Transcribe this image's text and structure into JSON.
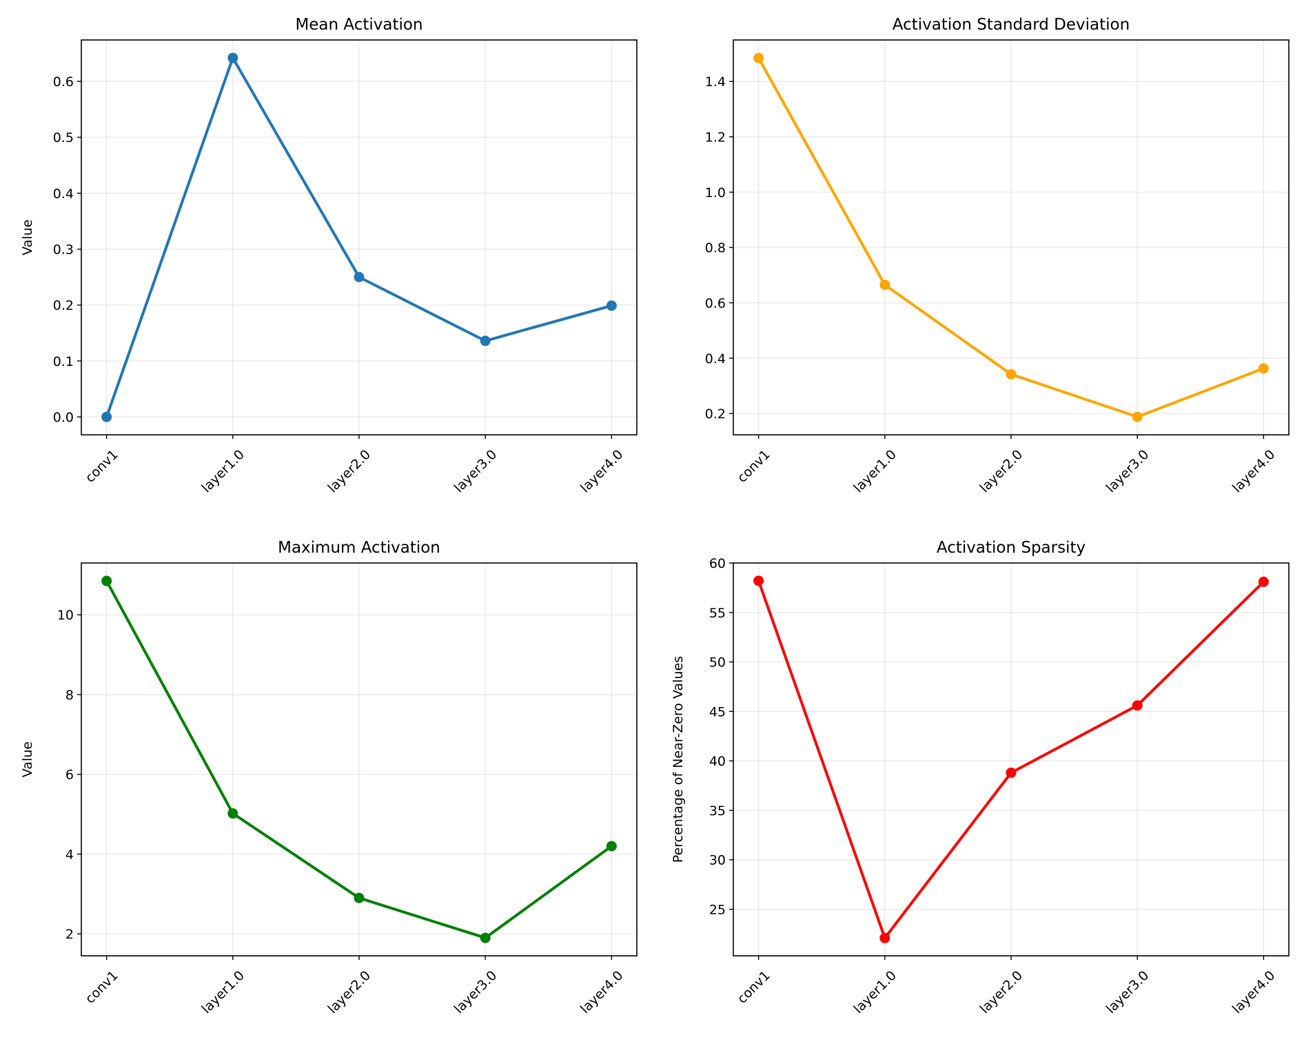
{
  "chart_data": [
    {
      "type": "line",
      "title": "Mean Activation",
      "xlabel": "",
      "ylabel": "Value",
      "categories": [
        "conv1",
        "layer1.0",
        "layer2.0",
        "layer3.0",
        "layer4.0"
      ],
      "values": [
        0.0,
        0.642,
        0.25,
        0.136,
        0.199
      ],
      "color": "#1f77b4",
      "ylim": [
        -0.032,
        0.674
      ],
      "yticks": [
        0.0,
        0.1,
        0.2,
        0.3,
        0.4,
        0.5,
        0.6
      ],
      "ytick_labels": [
        "0.0",
        "0.1",
        "0.2",
        "0.3",
        "0.4",
        "0.5",
        "0.6"
      ],
      "grid": true
    },
    {
      "type": "line",
      "title": "Activation Standard Deviation",
      "xlabel": "",
      "ylabel": "",
      "categories": [
        "conv1",
        "layer1.0",
        "layer2.0",
        "layer3.0",
        "layer4.0"
      ],
      "values": [
        1.485,
        0.665,
        0.342,
        0.188,
        0.363
      ],
      "color": "#ffa500",
      "ylim": [
        0.123,
        1.55
      ],
      "yticks": [
        0.2,
        0.4,
        0.6,
        0.8,
        1.0,
        1.2,
        1.4
      ],
      "ytick_labels": [
        "0.2",
        "0.4",
        "0.6",
        "0.8",
        "1.0",
        "1.2",
        "1.4"
      ],
      "grid": true
    },
    {
      "type": "line",
      "title": "Maximum Activation",
      "xlabel": "",
      "ylabel": "Value",
      "categories": [
        "conv1",
        "layer1.0",
        "layer2.0",
        "layer3.0",
        "layer4.0"
      ],
      "values": [
        10.85,
        5.02,
        2.9,
        1.9,
        4.2
      ],
      "color": "#008000",
      "ylim": [
        1.45,
        11.3
      ],
      "yticks": [
        2,
        4,
        6,
        8,
        10
      ],
      "ytick_labels": [
        "2",
        "4",
        "6",
        "8",
        "10"
      ],
      "grid": true
    },
    {
      "type": "line",
      "title": "Activation Sparsity",
      "xlabel": "",
      "ylabel": "Percentage of Near-Zero Values",
      "categories": [
        "conv1",
        "layer1.0",
        "layer2.0",
        "layer3.0",
        "layer4.0"
      ],
      "values": [
        58.2,
        22.1,
        38.8,
        45.6,
        58.1
      ],
      "color": "#ff0000",
      "ylim": [
        20.3,
        60.0
      ],
      "yticks": [
        25,
        30,
        35,
        40,
        45,
        50,
        55,
        60
      ],
      "ytick_labels": [
        "25",
        "30",
        "35",
        "40",
        "45",
        "50",
        "55",
        "60"
      ],
      "grid": true
    }
  ]
}
